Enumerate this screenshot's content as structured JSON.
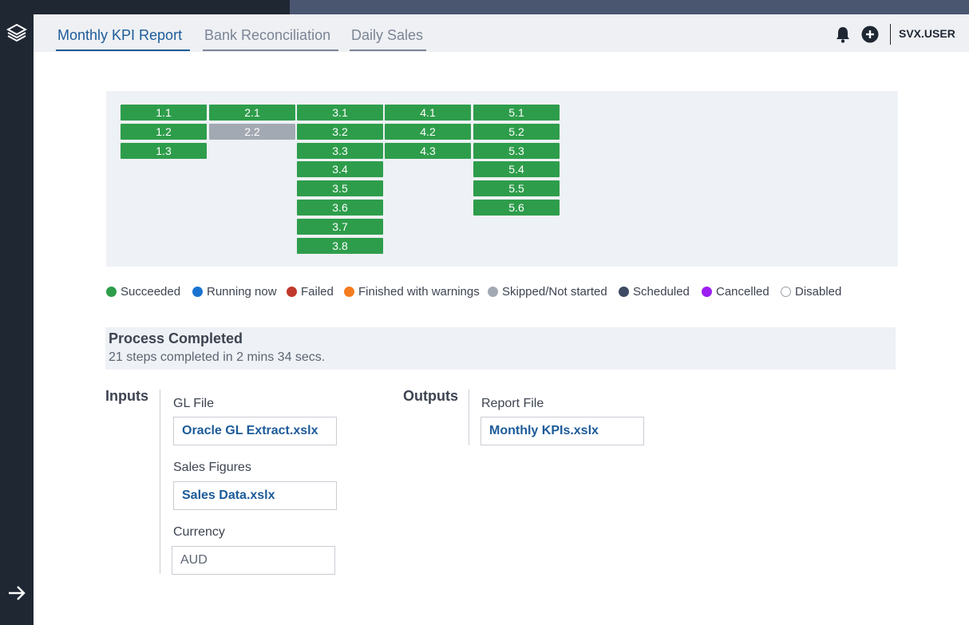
{
  "tabs": [
    {
      "label": "Monthly KPI Report",
      "active": true
    },
    {
      "label": "Bank Reconciliation",
      "active": false
    },
    {
      "label": "Daily Sales",
      "active": false
    }
  ],
  "header": {
    "user": "SVX.USER",
    "icons": [
      "bell-icon",
      "plus-circle-icon"
    ]
  },
  "sidebar": {
    "icons": [
      "layers-logo-icon",
      "arrow-right-icon"
    ]
  },
  "steps": [
    [
      "1.1",
      "1.2",
      "1.3"
    ],
    [
      "2.1",
      "2.2"
    ],
    [
      "3.1",
      "3.2",
      "3.3",
      "3.4",
      "3.5",
      "3.6",
      "3.7",
      "3.8"
    ],
    [
      "4.1",
      "4.2",
      "4.3"
    ],
    [
      "5.1",
      "5.2",
      "5.3",
      "5.4",
      "5.5",
      "5.6"
    ]
  ],
  "step_states": {
    "2.2": "skipped"
  },
  "legend": [
    {
      "label": "Succeeded",
      "color": "#2e9d4b"
    },
    {
      "label": "Running now",
      "color": "#1a73d1"
    },
    {
      "label": "Failed",
      "color": "#c0392b"
    },
    {
      "label": "Finished with warnings",
      "color": "#f47c20"
    },
    {
      "label": "Skipped/Not started",
      "color": "#a3a9b2"
    },
    {
      "label": "Scheduled",
      "color": "#3d4a63"
    },
    {
      "label": "Cancelled",
      "color": "#9b1ff0"
    },
    {
      "label": "Disabled",
      "color": "#ffffff"
    }
  ],
  "status": {
    "title": "Process Completed",
    "subtitle": "21 steps completed in 2 mins 34 secs."
  },
  "inputs": {
    "label": "Inputs",
    "gl_label": "GL File",
    "gl_value": "Oracle GL Extract.xslx",
    "sales_label": "Sales Figures",
    "sales_value": "Sales Data.xslx",
    "currency_label": "Currency",
    "currency_value": "AUD"
  },
  "outputs": {
    "label": "Outputs",
    "report_label": "Report File",
    "report_value": "Monthly KPIs.xslx"
  },
  "colors": {
    "success": "#2e9d4b",
    "skipped": "#a3a9b2",
    "accent": "#1c5b99",
    "sidebar": "#1f2733"
  }
}
